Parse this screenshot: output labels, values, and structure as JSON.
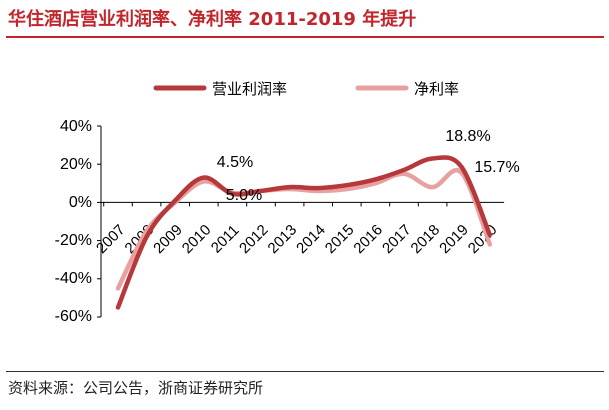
{
  "title": "华住酒店营业利润率、净利率 2011-2019 年提升",
  "source": "资料来源：公司公告，浙商证券研究所",
  "chart_data": {
    "type": "line",
    "title": "华住酒店营业利润率、净利率 2011-2019 年提升",
    "x": [
      "2007",
      "2008",
      "2009",
      "2010",
      "2011",
      "2012",
      "2013",
      "2014",
      "2015",
      "2016",
      "2017",
      "2018",
      "2019",
      "2020"
    ],
    "y_ticks": [
      "40%",
      "20%",
      "0%",
      "-20%",
      "-40%",
      "-60%"
    ],
    "ylim": [
      -60,
      40
    ],
    "grid": false,
    "legend_position": "top",
    "series": [
      {
        "name": "营业利润率",
        "color": "#b5383a",
        "values": [
          -55,
          -18,
          1,
          13,
          4.5,
          6,
          8,
          7.5,
          9,
          12,
          17,
          23,
          18.8,
          -17
        ]
      },
      {
        "name": "净利率",
        "color": "#e8a0a0",
        "values": [
          -45,
          -15,
          0,
          11,
          5.0,
          6,
          7,
          6,
          7,
          10,
          15,
          8,
          15.7,
          -22
        ]
      }
    ],
    "annotations": [
      "4.5%",
      "5.0%",
      "18.8%",
      "15.7%"
    ]
  }
}
